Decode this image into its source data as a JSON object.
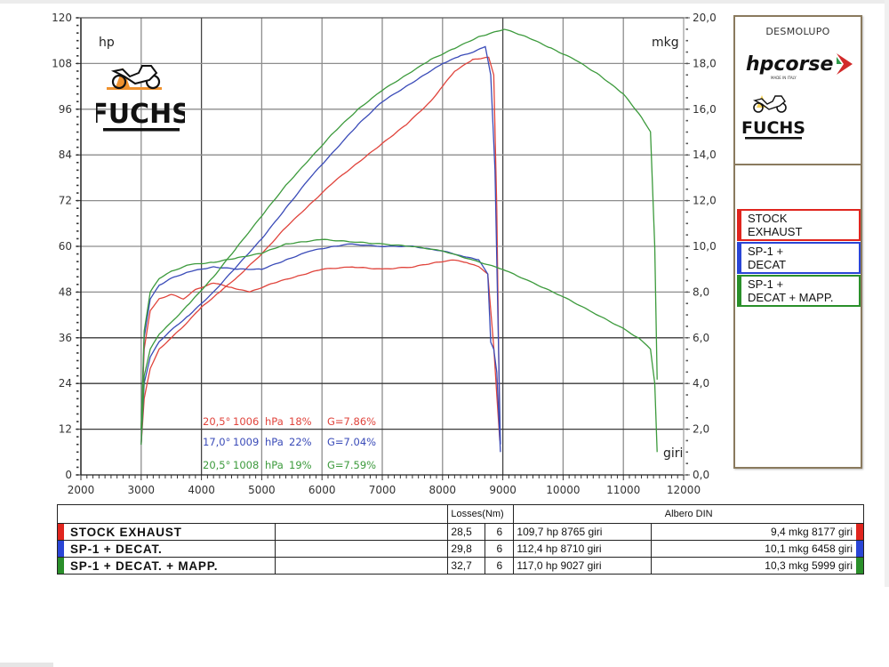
{
  "chart_data": {
    "type": "line",
    "title": "",
    "xlabel": "giri",
    "ylabel_left": "hp",
    "ylabel_right": "mkg",
    "xlim": [
      2000,
      12000
    ],
    "ylim_left": [
      0,
      120
    ],
    "ylim_right": [
      0,
      20
    ],
    "x_ticks": [
      "2000",
      "3000",
      "4000",
      "5000",
      "6000",
      "7000",
      "8000",
      "9000",
      "10000",
      "11000",
      "12000"
    ],
    "y_left_ticks": [
      "0",
      "12",
      "24",
      "36",
      "48",
      "60",
      "72",
      "84",
      "96",
      "108",
      "120"
    ],
    "y_right_ticks": [
      "0,0",
      "2,0",
      "4,0",
      "6,0",
      "8,0",
      "10,0",
      "12,0",
      "14,0",
      "16,0",
      "18,0",
      "20,0"
    ],
    "grid": true,
    "legend_position": "right",
    "series": [
      {
        "name": "STOCK EXHAUST",
        "color": "#e0443c",
        "power_hp": {
          "x": [
            3000,
            3050,
            3150,
            3300,
            3500,
            3700,
            4000,
            4300,
            4600,
            5000,
            5400,
            5800,
            6200,
            6600,
            7000,
            7400,
            7800,
            8000,
            8200,
            8500,
            8765,
            8850,
            8900,
            8950
          ],
          "y": [
            8,
            20,
            28,
            33,
            36,
            39,
            44,
            48,
            52,
            58,
            65,
            71,
            77,
            82,
            87,
            92,
            98,
            102,
            106,
            109,
            109.7,
            105,
            70,
            10
          ]
        },
        "torque_mkg": {
          "x": [
            3000,
            3050,
            3150,
            3300,
            3500,
            3700,
            3900,
            4200,
            4500,
            4800,
            5200,
            5600,
            6000,
            6500,
            7000,
            7500,
            7900,
            8177,
            8400,
            8600,
            8750,
            8850,
            8900,
            8950
          ],
          "y": [
            2.0,
            5.5,
            7.2,
            7.7,
            7.9,
            7.7,
            8.1,
            8.4,
            8.2,
            8.0,
            8.4,
            8.7,
            9.0,
            9.1,
            9.0,
            9.1,
            9.3,
            9.4,
            9.3,
            9.1,
            8.8,
            5.6,
            3.5,
            1.5
          ]
        }
      },
      {
        "name": "SP-1 + DECAT",
        "color": "#3a4bb8",
        "power_hp": {
          "x": [
            3000,
            3050,
            3150,
            3300,
            3500,
            3800,
            4200,
            4600,
            5000,
            5400,
            5800,
            6200,
            6600,
            7000,
            7400,
            7800,
            8000,
            8300,
            8500,
            8710,
            8800,
            8870,
            8920,
            8960
          ],
          "y": [
            8,
            24,
            31,
            35,
            38,
            42,
            48,
            55,
            62,
            70,
            78,
            85,
            92,
            98,
            102,
            106,
            108,
            110,
            111,
            112.4,
            105,
            80,
            40,
            8
          ]
        },
        "torque_mkg": {
          "x": [
            3000,
            3050,
            3150,
            3300,
            3500,
            3800,
            4200,
            4600,
            5000,
            5400,
            5800,
            6200,
            6458,
            7000,
            7500,
            8000,
            8300,
            8600,
            8750,
            8800,
            8850,
            8900,
            8960
          ],
          "y": [
            2.0,
            6.0,
            7.7,
            8.3,
            8.6,
            8.9,
            9.1,
            9.0,
            9.0,
            9.4,
            9.8,
            10.0,
            10.1,
            10.0,
            10.0,
            9.8,
            9.6,
            9.4,
            8.8,
            5.8,
            5.5,
            4.5,
            1.0
          ]
        }
      },
      {
        "name": "SP-1 + DECAT + MAPP.",
        "color": "#3c9a3c",
        "power_hp": {
          "x": [
            3000,
            3050,
            3150,
            3300,
            3500,
            3800,
            4200,
            4600,
            5000,
            5400,
            5800,
            6200,
            6600,
            7000,
            7400,
            7800,
            8200,
            8600,
            9027,
            9400,
            9800,
            10200,
            10600,
            11000,
            11300,
            11450,
            11520,
            11560
          ],
          "y": [
            8,
            26,
            33,
            37,
            40,
            45,
            52,
            60,
            68,
            76,
            83,
            90,
            96,
            101,
            105,
            109,
            112,
            115,
            117,
            115,
            112,
            109,
            105,
            100,
            94,
            90,
            60,
            25
          ]
        },
        "torque_mkg": {
          "x": [
            3000,
            3050,
            3150,
            3300,
            3500,
            3800,
            4200,
            4600,
            5000,
            5400,
            5999,
            6500,
            7000,
            7500,
            8000,
            8500,
            9000,
            9500,
            10000,
            10500,
            11000,
            11300,
            11450,
            11520,
            11560
          ],
          "y": [
            2.0,
            6.3,
            8.0,
            8.6,
            8.9,
            9.2,
            9.3,
            9.5,
            9.7,
            10.1,
            10.3,
            10.2,
            10.1,
            10.0,
            9.8,
            9.4,
            9.0,
            8.4,
            7.8,
            7.1,
            6.4,
            5.9,
            5.5,
            4.0,
            1.0
          ]
        }
      }
    ],
    "annotations": [
      {
        "text": "20,5°  1006 hPa  18%   G=7.86%",
        "color": "#e0443c"
      },
      {
        "text": "17,0°  1009 hPa  22%   G=7.04%",
        "color": "#3a4bb8"
      },
      {
        "text": "20,5°  1008 hPa  19%   G=7.59%",
        "color": "#3c9a3c"
      }
    ]
  },
  "axes": {
    "left_unit": "hp",
    "right_unit": "mkg",
    "x_unit": "giri"
  },
  "conditions": [
    {
      "temp": "20,5°",
      "pressure": "1006",
      "unit": "hPa",
      "humidity": "18%",
      "g": "G=7.86%",
      "color": "#e0443c"
    },
    {
      "temp": "17,0°",
      "pressure": "1009",
      "unit": "hPa",
      "humidity": "22%",
      "g": "G=7.04%",
      "color": "#3a4bb8"
    },
    {
      "temp": "20,5°",
      "pressure": "1008",
      "unit": "hPa",
      "humidity": "19%",
      "g": "G=7.59%",
      "color": "#3c9a3c"
    }
  ],
  "side_panel": {
    "brand_top": "DESMOLUPO",
    "hpcorse_logo": "hpcorse",
    "hpcorse_tagline": "MADE IN ITALY",
    "fuchs_logo": "FUCHS",
    "legend": [
      {
        "line1": "STOCK",
        "line2": "EXHAUST",
        "color": "#e0251e"
      },
      {
        "line1": "SP-1 +",
        "line2": "DECAT",
        "color": "#2a45d6"
      },
      {
        "line1": "SP-1 +",
        "line2": "DECAT + MAPP.",
        "color": "#2a8f2a"
      }
    ]
  },
  "watermark_logo": "FUCHS",
  "table": {
    "header": {
      "losses": "Losses(Nm)",
      "albero": "Albero DIN"
    },
    "rows": [
      {
        "label": "STOCK EXHAUST",
        "losses": "28,5",
        "gear": "6",
        "power": "109,7 hp 8765 giri",
        "torque": "9,4 mkg 8177 giri",
        "color": "#e0251e"
      },
      {
        "label": "SP-1 + DECAT.",
        "losses": "29,8",
        "gear": "6",
        "power": "112,4 hp 8710 giri",
        "torque": "10,1 mkg 6458 giri",
        "color": "#2a45d6"
      },
      {
        "label": "SP-1 + DECAT. + MAPP.",
        "losses": "32,7",
        "gear": "6",
        "power": "117,0 hp 9027 giri",
        "torque": "10,3 mkg 5999 giri",
        "color": "#2a8f2a"
      }
    ]
  }
}
